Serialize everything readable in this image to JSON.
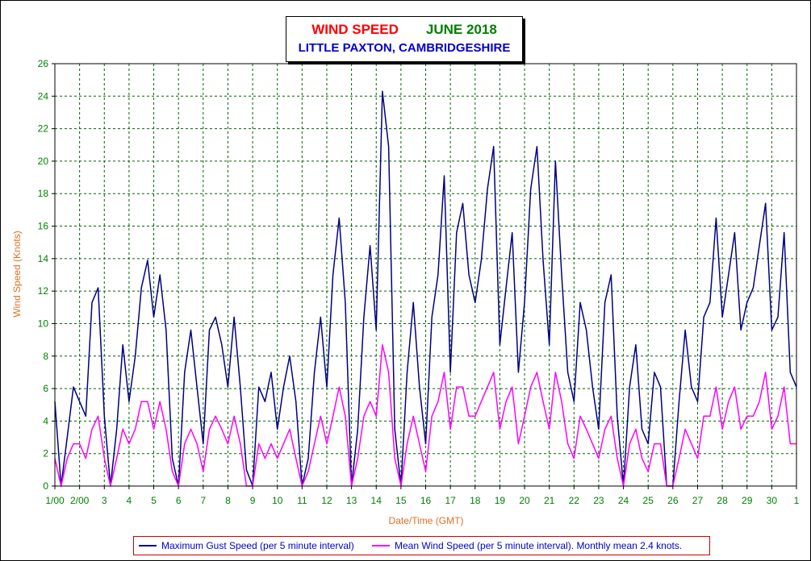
{
  "chart_data": {
    "type": "line",
    "title": {
      "part1": "WIND SPEED",
      "part2": "JUNE 2018",
      "subtitle": "LITTLE PAXTON, CAMBRIDGESHIRE"
    },
    "xlabel": "Date/Time (GMT)",
    "ylabel": "Wind Speed (Knots)",
    "ylim": [
      0,
      26
    ],
    "xlim": [
      1,
      31
    ],
    "yticks": [
      0,
      2,
      4,
      6,
      8,
      10,
      12,
      14,
      16,
      18,
      20,
      22,
      24,
      26
    ],
    "xticks": [
      {
        "value": 1,
        "label": "1/00"
      },
      {
        "value": 2,
        "label": "2/00"
      },
      {
        "value": 3,
        "label": "3"
      },
      {
        "value": 4,
        "label": "4"
      },
      {
        "value": 5,
        "label": "5"
      },
      {
        "value": 6,
        "label": "6"
      },
      {
        "value": 7,
        "label": "7"
      },
      {
        "value": 8,
        "label": "8"
      },
      {
        "value": 9,
        "label": "9"
      },
      {
        "value": 10,
        "label": "10"
      },
      {
        "value": 11,
        "label": "11"
      },
      {
        "value": 12,
        "label": "12"
      },
      {
        "value": 13,
        "label": "13"
      },
      {
        "value": 14,
        "label": "14"
      },
      {
        "value": 15,
        "label": "15"
      },
      {
        "value": 16,
        "label": "16"
      },
      {
        "value": 17,
        "label": "17"
      },
      {
        "value": 18,
        "label": "18"
      },
      {
        "value": 19,
        "label": "19"
      },
      {
        "value": 20,
        "label": "20"
      },
      {
        "value": 21,
        "label": "21"
      },
      {
        "value": 22,
        "label": "22"
      },
      {
        "value": 23,
        "label": "23"
      },
      {
        "value": 24,
        "label": "24"
      },
      {
        "value": 25,
        "label": "25"
      },
      {
        "value": 26,
        "label": "26"
      },
      {
        "value": 27,
        "label": "27"
      },
      {
        "value": 28,
        "label": "28"
      },
      {
        "value": 29,
        "label": "29"
      },
      {
        "value": 30,
        "label": "30"
      },
      {
        "value": 31,
        "label": "1"
      }
    ],
    "grid": true,
    "legend_placement": "bottom",
    "series": [
      {
        "name": "Maximum Gust Speed (per 5 minute interval)",
        "color": "#000080",
        "x": [
          1.0,
          1.25,
          1.5,
          1.75,
          2.0,
          2.25,
          2.5,
          2.75,
          3.0,
          3.25,
          3.5,
          3.75,
          4.0,
          4.25,
          4.5,
          4.75,
          5.0,
          5.25,
          5.5,
          5.75,
          6.0,
          6.25,
          6.5,
          6.75,
          7.0,
          7.25,
          7.5,
          7.75,
          8.0,
          8.25,
          8.5,
          8.75,
          9.0,
          9.25,
          9.5,
          9.75,
          10.0,
          10.25,
          10.5,
          10.75,
          11.0,
          11.25,
          11.5,
          11.75,
          12.0,
          12.25,
          12.5,
          12.75,
          13.0,
          13.25,
          13.5,
          13.75,
          14.0,
          14.25,
          14.5,
          14.75,
          15.0,
          15.25,
          15.5,
          15.75,
          16.0,
          16.25,
          16.5,
          16.75,
          17.0,
          17.25,
          17.5,
          17.75,
          18.0,
          18.25,
          18.5,
          18.75,
          19.0,
          19.25,
          19.5,
          19.75,
          20.0,
          20.25,
          20.5,
          20.75,
          21.0,
          21.25,
          21.5,
          21.75,
          22.0,
          22.25,
          22.5,
          22.75,
          23.0,
          23.25,
          23.5,
          23.75,
          24.0,
          24.25,
          24.5,
          24.75,
          25.0,
          25.25,
          25.5,
          25.75,
          26.0,
          26.25,
          26.5,
          26.75,
          27.0,
          27.25,
          27.5,
          27.75,
          28.0,
          28.25,
          28.5,
          28.75,
          29.0,
          29.25,
          29.5,
          29.75,
          30.0,
          30.25,
          30.5,
          30.75,
          31.0
        ],
        "y": [
          5.2,
          0.0,
          3.0,
          6.1,
          5.2,
          4.3,
          11.3,
          12.2,
          4.3,
          0.0,
          3.5,
          8.7,
          5.2,
          8.0,
          12.2,
          13.9,
          10.4,
          13.0,
          9.6,
          1.7,
          0.0,
          7.0,
          9.6,
          6.1,
          2.6,
          9.6,
          10.4,
          8.7,
          6.1,
          10.4,
          6.1,
          1.0,
          0.0,
          6.1,
          5.2,
          7.0,
          3.5,
          6.1,
          8.0,
          5.2,
          0.0,
          1.7,
          7.0,
          10.4,
          6.1,
          13.0,
          16.5,
          11.3,
          0.0,
          3.5,
          10.4,
          14.8,
          9.6,
          24.3,
          20.9,
          3.5,
          0.0,
          7.0,
          11.3,
          6.1,
          2.6,
          10.4,
          13.0,
          19.1,
          7.0,
          15.6,
          17.4,
          13.0,
          11.3,
          13.9,
          18.3,
          20.9,
          8.7,
          12.2,
          15.6,
          7.0,
          11.3,
          18.3,
          20.9,
          13.9,
          8.7,
          20.0,
          13.0,
          7.0,
          5.2,
          11.3,
          9.6,
          6.1,
          3.5,
          11.3,
          13.0,
          4.3,
          0.0,
          6.1,
          8.7,
          3.5,
          2.6,
          7.0,
          6.1,
          0.0,
          0.0,
          5.2,
          9.6,
          6.1,
          5.2,
          10.4,
          11.3,
          16.5,
          10.4,
          13.0,
          15.6,
          9.6,
          11.3,
          12.2,
          14.8,
          17.4,
          9.6,
          10.4,
          15.6,
          7.0,
          6.1
        ]
      },
      {
        "name": "Mean Wind Speed (per 5 minute interval). Monthly mean 2.4 knots.",
        "color": "#ff00ff",
        "x": [
          1.0,
          1.25,
          1.5,
          1.75,
          2.0,
          2.25,
          2.5,
          2.75,
          3.0,
          3.25,
          3.5,
          3.75,
          4.0,
          4.25,
          4.5,
          4.75,
          5.0,
          5.25,
          5.5,
          5.75,
          6.0,
          6.25,
          6.5,
          6.75,
          7.0,
          7.25,
          7.5,
          7.75,
          8.0,
          8.25,
          8.5,
          8.75,
          9.0,
          9.25,
          9.5,
          9.75,
          10.0,
          10.25,
          10.5,
          10.75,
          11.0,
          11.25,
          11.5,
          11.75,
          12.0,
          12.25,
          12.5,
          12.75,
          13.0,
          13.25,
          13.5,
          13.75,
          14.0,
          14.25,
          14.5,
          14.75,
          15.0,
          15.25,
          15.5,
          15.75,
          16.0,
          16.25,
          16.5,
          16.75,
          17.0,
          17.25,
          17.5,
          17.75,
          18.0,
          18.25,
          18.5,
          18.75,
          19.0,
          19.25,
          19.5,
          19.75,
          20.0,
          20.25,
          20.5,
          20.75,
          21.0,
          21.25,
          21.5,
          21.75,
          22.0,
          22.25,
          22.5,
          22.75,
          23.0,
          23.25,
          23.5,
          23.75,
          24.0,
          24.25,
          24.5,
          24.75,
          25.0,
          25.25,
          25.5,
          25.75,
          26.0,
          26.25,
          26.5,
          26.75,
          27.0,
          27.25,
          27.5,
          27.75,
          28.0,
          28.25,
          28.5,
          28.75,
          29.0,
          29.25,
          29.5,
          29.75,
          30.0,
          30.25,
          30.5,
          30.75,
          31.0
        ],
        "y": [
          1.7,
          0.0,
          1.7,
          2.6,
          2.6,
          1.7,
          3.5,
          4.3,
          1.7,
          0.0,
          1.7,
          3.5,
          2.6,
          3.5,
          5.2,
          5.2,
          3.5,
          5.2,
          3.5,
          0.9,
          0.0,
          2.6,
          3.5,
          2.6,
          0.9,
          3.5,
          4.3,
          3.5,
          2.6,
          4.3,
          2.6,
          0.0,
          0.0,
          2.6,
          1.7,
          2.6,
          1.7,
          2.6,
          3.5,
          1.7,
          0.0,
          0.9,
          2.6,
          4.3,
          2.6,
          4.3,
          6.1,
          4.3,
          0.0,
          1.7,
          4.3,
          5.2,
          4.3,
          8.7,
          7.0,
          1.7,
          0.0,
          2.6,
          4.3,
          2.6,
          0.9,
          4.3,
          5.2,
          7.0,
          3.5,
          6.1,
          6.1,
          4.3,
          4.3,
          5.2,
          6.1,
          7.0,
          3.5,
          5.2,
          6.1,
          2.6,
          4.3,
          6.1,
          7.0,
          5.2,
          3.5,
          7.0,
          5.2,
          2.6,
          1.7,
          4.3,
          3.5,
          2.6,
          1.7,
          3.5,
          4.3,
          1.7,
          0.0,
          2.6,
          3.5,
          1.7,
          0.9,
          2.6,
          2.6,
          0.0,
          0.0,
          1.7,
          3.5,
          2.6,
          1.7,
          4.3,
          4.3,
          6.1,
          3.5,
          5.2,
          6.1,
          3.5,
          4.3,
          4.3,
          5.2,
          7.0,
          3.5,
          4.3,
          6.1,
          2.6,
          2.6
        ]
      }
    ]
  }
}
